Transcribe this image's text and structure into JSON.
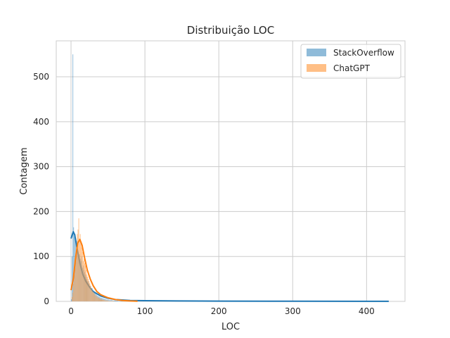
{
  "chart_data": {
    "type": "histogram",
    "title": "Distribuição LOC",
    "xlabel": "LOC",
    "ylabel": "Contagem",
    "xlim": [
      -20,
      452
    ],
    "ylim": [
      0,
      580
    ],
    "xticks": [
      0,
      100,
      200,
      300,
      400
    ],
    "yticks": [
      0,
      100,
      200,
      300,
      400,
      500
    ],
    "grid": true,
    "legend_position": "top-right",
    "series": [
      {
        "name": "StackOverflow",
        "color": "#1f77b4",
        "bars": {
          "bin_start": 0,
          "bin_width": 1,
          "counts": [
            5,
            100,
            550,
            165,
            145,
            150,
            140,
            120,
            135,
            110,
            100,
            105,
            95,
            90,
            100,
            75,
            80,
            70,
            65,
            60,
            55,
            50,
            45,
            45,
            40,
            35,
            35,
            30,
            30,
            25,
            22,
            20,
            18,
            16,
            15,
            13,
            12,
            11,
            10,
            9,
            8,
            8,
            7,
            7,
            6,
            6,
            5,
            5,
            4,
            4,
            4,
            3,
            3,
            3,
            3,
            3,
            2,
            2,
            2,
            2,
            2,
            2,
            2,
            2,
            1,
            1,
            1,
            1,
            1,
            1
          ]
        },
        "kde": {
          "x": [
            0,
            3,
            5,
            8,
            12,
            16,
            20,
            25,
            30,
            40,
            50,
            60,
            80,
            100,
            150,
            200,
            300,
            430
          ],
          "y": [
            140,
            155,
            148,
            120,
            85,
            60,
            45,
            32,
            22,
            12,
            7,
            4,
            2,
            1.5,
            1,
            0.6,
            0.3,
            0.1
          ]
        }
      },
      {
        "name": "ChatGPT",
        "color": "#ff7f0e",
        "bars": {
          "bin_start": 0,
          "bin_width": 1,
          "counts": [
            0,
            10,
            20,
            40,
            60,
            80,
            100,
            120,
            150,
            160,
            185,
            140,
            150,
            130,
            120,
            110,
            90,
            95,
            85,
            80,
            70,
            60,
            55,
            50,
            45,
            40,
            35,
            30,
            25,
            22,
            20,
            18,
            15,
            13,
            12,
            10,
            9,
            8,
            7,
            6,
            5,
            5,
            4,
            4,
            3,
            3,
            2,
            2,
            2,
            2,
            1,
            1,
            1,
            1,
            1,
            1,
            1,
            1
          ]
        },
        "kde": {
          "x": [
            0,
            3,
            6,
            9,
            12,
            15,
            18,
            22,
            26,
            30,
            35,
            40,
            50,
            60,
            70,
            80,
            90
          ],
          "y": [
            25,
            50,
            95,
            130,
            138,
            125,
            100,
            70,
            50,
            35,
            22,
            15,
            8,
            4,
            2,
            1,
            0.5
          ]
        }
      }
    ]
  }
}
